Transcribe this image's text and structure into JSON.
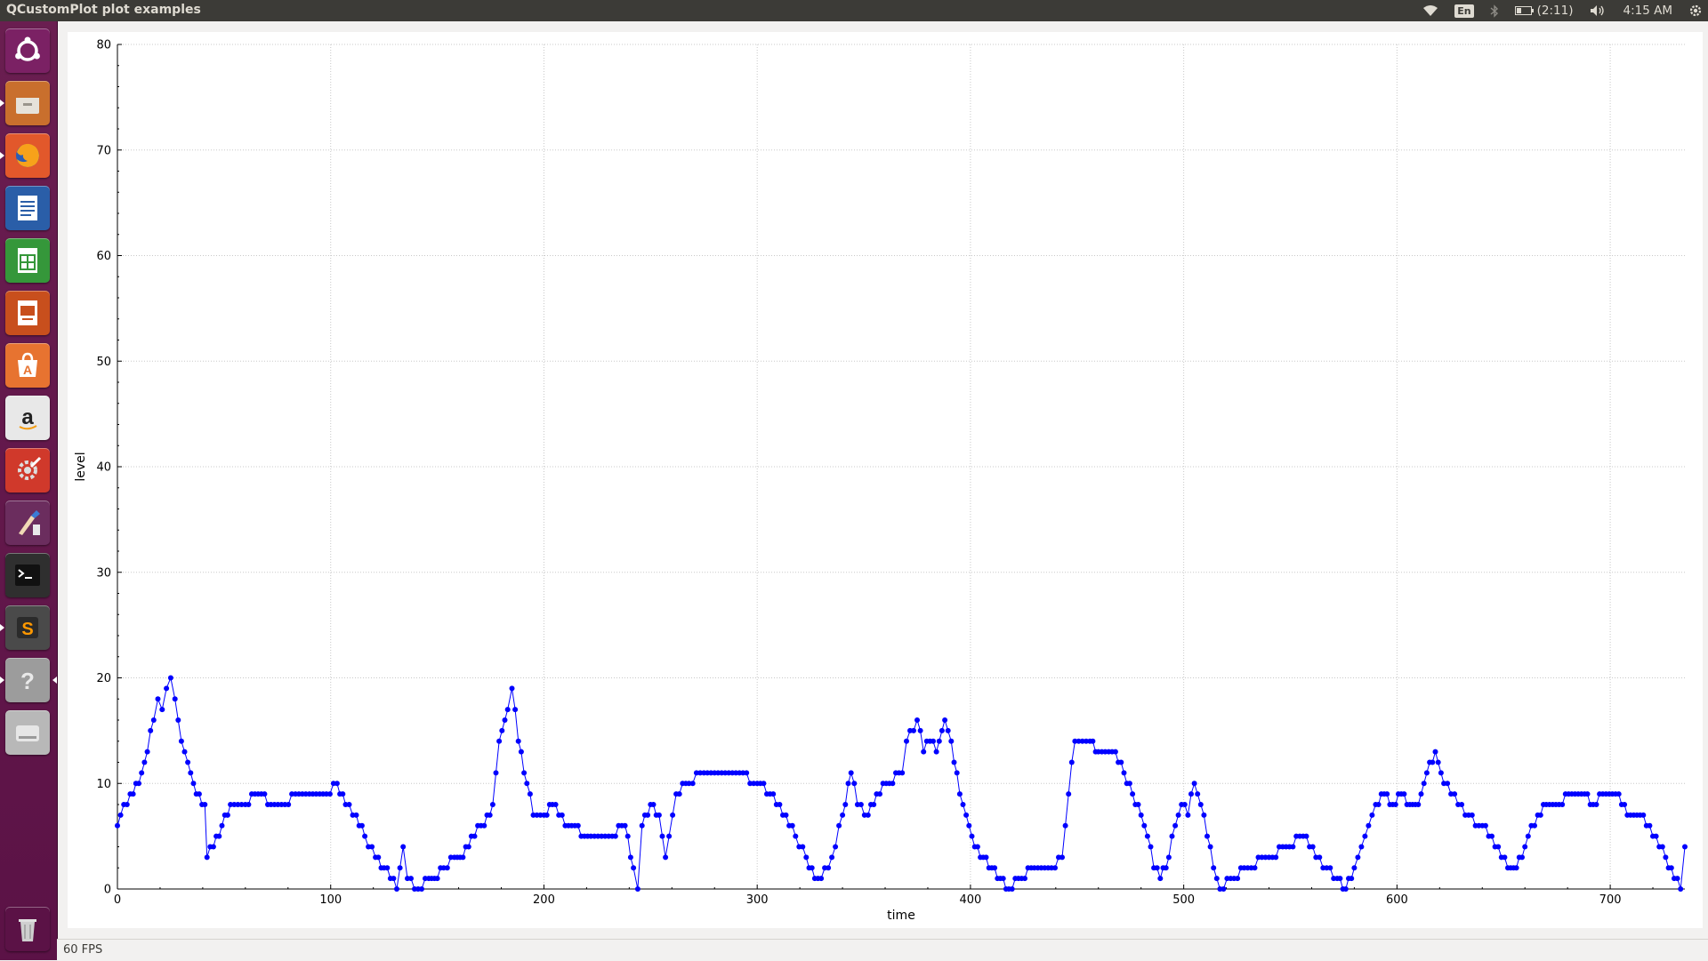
{
  "window": {
    "title": "QCustomPlot plot examples"
  },
  "panel": {
    "indicators": [
      {
        "name": "wifi-icon"
      },
      {
        "name": "keyboard-layout-icon",
        "label": "En"
      },
      {
        "name": "bluetooth-icon"
      },
      {
        "name": "battery-icon",
        "label": "(2:11)"
      },
      {
        "name": "volume-icon"
      },
      {
        "name": "clock",
        "label": "4:15 AM"
      },
      {
        "name": "system-gear-icon"
      }
    ]
  },
  "launcher": {
    "items": [
      {
        "name": "ubuntu-dash-icon",
        "color": "#7b2164",
        "running": false
      },
      {
        "name": "files-icon",
        "color": "#c96f2d",
        "running": true
      },
      {
        "name": "firefox-icon",
        "color": "#e2582b",
        "running": true
      },
      {
        "name": "writer-icon",
        "color": "#2a5ea8",
        "running": false
      },
      {
        "name": "calc-icon",
        "color": "#35973a",
        "running": false
      },
      {
        "name": "impress-icon",
        "color": "#c84f1d",
        "running": false
      },
      {
        "name": "software-center-icon",
        "color": "#e77330",
        "running": false
      },
      {
        "name": "amazon-icon",
        "color": "#e8e8e8",
        "running": false
      },
      {
        "name": "system-settings-icon",
        "color": "#d0392b",
        "running": false
      },
      {
        "name": "paint-icon",
        "color": "#6b2d5e",
        "running": false
      },
      {
        "name": "terminal-icon",
        "color": "#2f2f2f",
        "running": false
      },
      {
        "name": "sublime-text-icon",
        "color": "#4a4a4a",
        "running": true
      },
      {
        "name": "help-icon",
        "color": "#9c9c9c",
        "running": true
      },
      {
        "name": "disk-icon",
        "color": "#b8b8b8",
        "running": false
      },
      {
        "name": "trash-icon",
        "color": "#5b1246",
        "running": false
      }
    ]
  },
  "status": {
    "fps": "60 FPS"
  },
  "chart_data": {
    "type": "line",
    "xlabel": "time",
    "ylabel": "level",
    "xlim": [
      0,
      735
    ],
    "ylim": [
      0,
      80
    ],
    "xticks": [
      0,
      100,
      200,
      300,
      400,
      500,
      600,
      700
    ],
    "yticks": [
      0,
      10,
      20,
      30,
      40,
      50,
      60,
      70,
      80
    ],
    "grid": true,
    "line_color": "#0000ff",
    "marker": "circle",
    "keypoints": [
      [
        0,
        6
      ],
      [
        6,
        9
      ],
      [
        10,
        10
      ],
      [
        14,
        13
      ],
      [
        17,
        16
      ],
      [
        19,
        18
      ],
      [
        21,
        17
      ],
      [
        23,
        19
      ],
      [
        25,
        20
      ],
      [
        27,
        18
      ],
      [
        30,
        14
      ],
      [
        33,
        12
      ],
      [
        37,
        9
      ],
      [
        41,
        8
      ],
      [
        42,
        3
      ],
      [
        45,
        4
      ],
      [
        49,
        6
      ],
      [
        53,
        8
      ],
      [
        60,
        8
      ],
      [
        66,
        9
      ],
      [
        72,
        8
      ],
      [
        90,
        9
      ],
      [
        98,
        9
      ],
      [
        103,
        10
      ],
      [
        107,
        8
      ],
      [
        112,
        7
      ],
      [
        116,
        5
      ],
      [
        121,
        3
      ],
      [
        125,
        2
      ],
      [
        131,
        0
      ],
      [
        134,
        4
      ],
      [
        136,
        1
      ],
      [
        141,
        0
      ],
      [
        146,
        1
      ],
      [
        150,
        1
      ],
      [
        153,
        2
      ],
      [
        158,
        3
      ],
      [
        162,
        3
      ],
      [
        166,
        5
      ],
      [
        172,
        6
      ],
      [
        176,
        8
      ],
      [
        179,
        14
      ],
      [
        183,
        17
      ],
      [
        185,
        19
      ],
      [
        188,
        14
      ],
      [
        192,
        10
      ],
      [
        195,
        7
      ],
      [
        200,
        7
      ],
      [
        204,
        8
      ],
      [
        210,
        6
      ],
      [
        222,
        5
      ],
      [
        232,
        5
      ],
      [
        238,
        6
      ],
      [
        242,
        2
      ],
      [
        244,
        0
      ],
      [
        246,
        6
      ],
      [
        250,
        8
      ],
      [
        254,
        7
      ],
      [
        257,
        3
      ],
      [
        262,
        9
      ],
      [
        268,
        10
      ],
      [
        275,
        11
      ],
      [
        280,
        11
      ],
      [
        290,
        11
      ],
      [
        300,
        10
      ],
      [
        306,
        9
      ],
      [
        312,
        7
      ],
      [
        318,
        5
      ],
      [
        323,
        3
      ],
      [
        327,
        1
      ],
      [
        330,
        1
      ],
      [
        335,
        3
      ],
      [
        340,
        7
      ],
      [
        344,
        11
      ],
      [
        347,
        8
      ],
      [
        352,
        7
      ],
      [
        356,
        9
      ],
      [
        362,
        10
      ],
      [
        368,
        11
      ],
      [
        370,
        14
      ],
      [
        375,
        16
      ],
      [
        378,
        13
      ],
      [
        381,
        14
      ],
      [
        384,
        13
      ],
      [
        388,
        16
      ],
      [
        391,
        14
      ],
      [
        395,
        9
      ],
      [
        398,
        7
      ],
      [
        402,
        4
      ],
      [
        406,
        3
      ],
      [
        410,
        2
      ],
      [
        414,
        1
      ],
      [
        418,
        0
      ],
      [
        424,
        1
      ],
      [
        430,
        2
      ],
      [
        438,
        2
      ],
      [
        443,
        3
      ],
      [
        446,
        9
      ],
      [
        449,
        14
      ],
      [
        456,
        14
      ],
      [
        460,
        13
      ],
      [
        468,
        13
      ],
      [
        472,
        11
      ],
      [
        476,
        9
      ],
      [
        480,
        7
      ],
      [
        483,
        5
      ],
      [
        486,
        2
      ],
      [
        489,
        1
      ],
      [
        493,
        3
      ],
      [
        496,
        6
      ],
      [
        499,
        8
      ],
      [
        502,
        7
      ],
      [
        505,
        10
      ],
      [
        508,
        8
      ],
      [
        511,
        5
      ],
      [
        514,
        2
      ],
      [
        517,
        0
      ],
      [
        522,
        1
      ],
      [
        530,
        2
      ],
      [
        540,
        3
      ],
      [
        548,
        4
      ],
      [
        556,
        5
      ],
      [
        562,
        3
      ],
      [
        567,
        2
      ],
      [
        572,
        1
      ],
      [
        576,
        0
      ],
      [
        580,
        2
      ],
      [
        585,
        5
      ],
      [
        590,
        8
      ],
      [
        594,
        9
      ],
      [
        598,
        8
      ],
      [
        602,
        9
      ],
      [
        606,
        8
      ],
      [
        610,
        8
      ],
      [
        614,
        11
      ],
      [
        618,
        13
      ],
      [
        622,
        10
      ],
      [
        627,
        9
      ],
      [
        632,
        7
      ],
      [
        640,
        6
      ],
      [
        646,
        4
      ],
      [
        652,
        2
      ],
      [
        656,
        2
      ],
      [
        660,
        4
      ],
      [
        666,
        7
      ],
      [
        670,
        8
      ],
      [
        676,
        8
      ],
      [
        682,
        9
      ],
      [
        688,
        9
      ],
      [
        692,
        8
      ],
      [
        698,
        9
      ],
      [
        704,
        9
      ],
      [
        708,
        7
      ],
      [
        714,
        7
      ],
      [
        720,
        5
      ],
      [
        726,
        3
      ],
      [
        730,
        1
      ],
      [
        733,
        0
      ],
      [
        735,
        4
      ]
    ]
  }
}
